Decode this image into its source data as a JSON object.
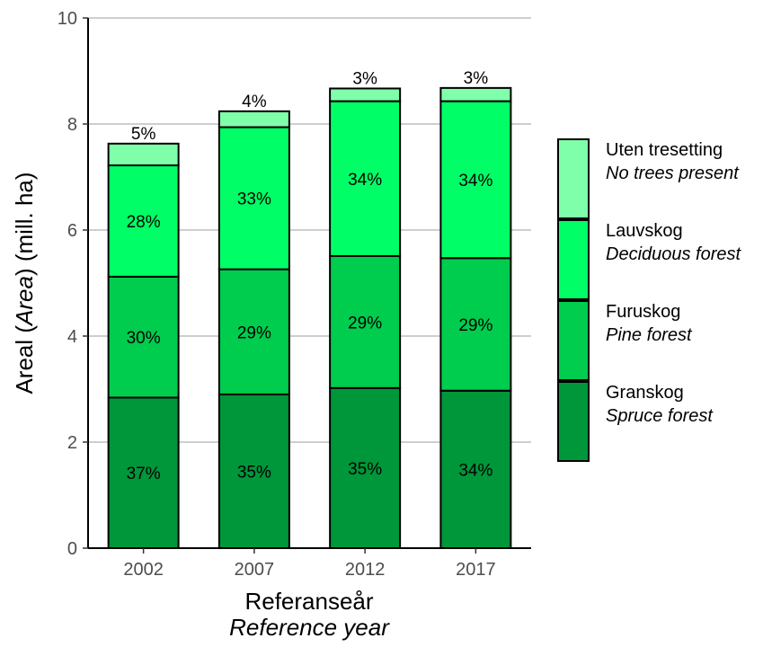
{
  "chart_data": {
    "type": "bar",
    "stacked": true,
    "categories": [
      "2002",
      "2007",
      "2012",
      "2017"
    ],
    "ylim": [
      0,
      10
    ],
    "yticks": [
      "0",
      "2",
      "4",
      "6",
      "8",
      "10"
    ],
    "grid": true,
    "legend_position": "right",
    "ylabel": {
      "prefix": "Areal (",
      "italic": "Area",
      "suffix": ") (mill. ha)"
    },
    "xlabel": {
      "line1": "Referanseår",
      "line2": "Reference year"
    },
    "series": [
      {
        "name": "Granskog",
        "name_en": "Spruce forest",
        "color": "#00963a",
        "values": [
          2.84,
          2.9,
          3.02,
          2.97
        ],
        "labels": [
          "37%",
          "35%",
          "35%",
          "34%"
        ]
      },
      {
        "name": "Furuskog",
        "name_en": "Pine forest",
        "color": "#00cc4e",
        "values": [
          2.28,
          2.36,
          2.49,
          2.5
        ],
        "labels": [
          "30%",
          "29%",
          "29%",
          "29%"
        ]
      },
      {
        "name": "Lauvskog",
        "name_en": "Deciduous forest",
        "color": "#00ff66",
        "values": [
          2.1,
          2.68,
          2.92,
          2.96
        ],
        "labels": [
          "28%",
          "33%",
          "34%",
          "34%"
        ]
      },
      {
        "name": "Uten tresetting",
        "name_en": "No trees present",
        "color": "#80ffaa",
        "values": [
          0.41,
          0.3,
          0.24,
          0.25
        ],
        "labels": [
          "5%",
          "4%",
          "3%",
          "3%"
        ]
      }
    ]
  }
}
